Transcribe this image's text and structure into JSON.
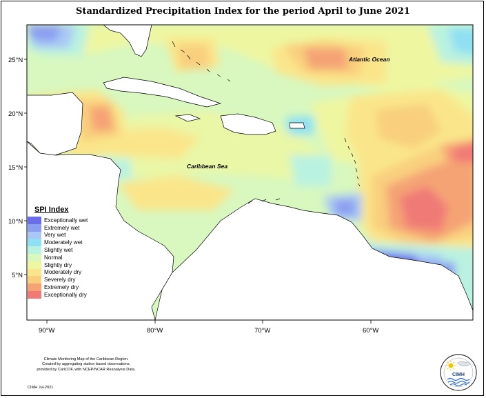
{
  "title": "Standardized Precipitation Index for the period April to June 2021",
  "map_labels": {
    "atlantic": "Atlantic Ocean",
    "caribbean": "Caribbean Sea"
  },
  "axes": {
    "lat_ticks": [
      "25°N",
      "20°N",
      "15°N",
      "10°N",
      "5°N"
    ],
    "lon_ticks": [
      "90°W",
      "80°W",
      "70°W",
      "60°W"
    ]
  },
  "legend": {
    "title": "SPI Index",
    "items": [
      {
        "label": "Exceptionally wet",
        "color": "#6b6de8"
      },
      {
        "label": "Extremely wet",
        "color": "#8b9ef0"
      },
      {
        "label": "Very wet",
        "color": "#a9c8f5"
      },
      {
        "label": "Moderately wet",
        "color": "#8fe0f3"
      },
      {
        "label": "Slightly wet",
        "color": "#b9f2e0"
      },
      {
        "label": "Normal",
        "color": "#d8f8c0"
      },
      {
        "label": "Slightly dry",
        "color": "#eef6a0"
      },
      {
        "label": "Moderately dry",
        "color": "#fae58a"
      },
      {
        "label": "Severely dry",
        "color": "#f9cf7e"
      },
      {
        "label": "Extremely dry",
        "color": "#f5a374"
      },
      {
        "label": "Exceptionally dry",
        "color": "#f07a76"
      }
    ]
  },
  "credit": {
    "line1": "Climate Monitoring Map of the Caribbean Region.",
    "line2": "Created by aggregating station based observations,",
    "line3": "provided by CariCOF, with NCEP/NCAR Reanalysis Data.",
    "date": "CIMH Jul-2021"
  },
  "logo": {
    "text": "CIMH"
  }
}
